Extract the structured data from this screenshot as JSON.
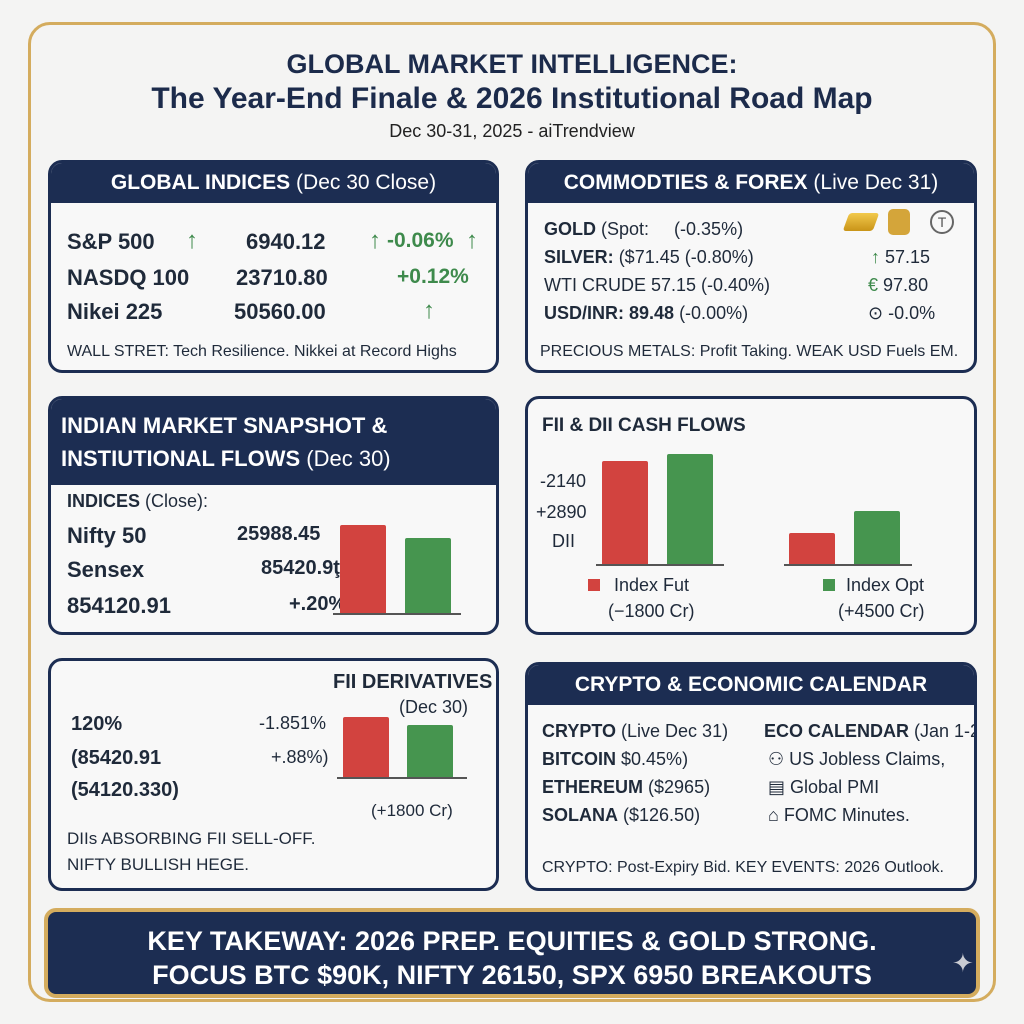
{
  "header": {
    "title_line1": "GLOBAL MARKET INTELLIGENCE:",
    "title_line2": "The Year-End Finale & 2026 Institutional Road Map",
    "subtitle": "Dec 30-31, 2025 - aiTrendview"
  },
  "colors": {
    "navy": "#1c2d52",
    "gold": "#d4ac5e",
    "red": "#d2433f",
    "green": "#46954f"
  },
  "global_indices": {
    "title": "GLOBAL INDICES",
    "title_note": "(Dec 30 Close)",
    "rows": [
      {
        "name": "S&P 500",
        "value": "6940.12",
        "change": "-0.06%"
      },
      {
        "name": "NASDQ 100",
        "value": "23710.80",
        "change": "+0.12%"
      },
      {
        "name": "Nikei 225",
        "value": "50560.00",
        "change": ""
      }
    ],
    "footer": "WALL STRET: Tech Resilience. Nikkei at Record Highs"
  },
  "commodities": {
    "title": "COMMODTIES & FOREX",
    "title_note": "(Live Dec 31)",
    "rows": [
      {
        "label": "GOLD",
        "rest": "(Spot:     (-0.35%)"
      },
      {
        "label": "SILVER:",
        "rest": "($71.45 (-0.80%)"
      },
      {
        "label": "",
        "rest": "WTI CRUDE 57.15 (-0.40%)"
      },
      {
        "label": "USD/INR: 89.48",
        "rest": "(-0.00%)"
      }
    ],
    "side": [
      "57.15",
      "97.80",
      "-0.0%"
    ],
    "side_icons": [
      "up-arrow",
      "euro",
      "gauge"
    ],
    "icons": [
      "gold-bars",
      "oil-barrel",
      "tether-coin"
    ],
    "footer": "PRECIOUS METALS: Profit Taking. WEAK USD Fuels EM."
  },
  "indian": {
    "title_line1": "INDIAN MARKET SNAPSHOT &",
    "title_line2": "INSTIUTIONAL FLOWS",
    "title_note": "(Dec 30)",
    "indices_label": "INDICES",
    "indices_note": "(Close):",
    "rows": [
      {
        "name": "Nifty 50",
        "value": "25988.45"
      },
      {
        "name": "Sensex",
        "value": "85420.9ţ"
      },
      {
        "name": "854120.91",
        "value": "+.20%)"
      }
    ],
    "bars": [
      1.0,
      0.85
    ]
  },
  "cash_flows": {
    "title": "FII & DII CASH FLOWS",
    "labels": [
      "-2140",
      "+2890",
      "DII"
    ],
    "legend": [
      {
        "label": "Index Fut",
        "note": "(−1800 Cr)"
      },
      {
        "label": "Index Opt",
        "note": "(+4500 Cr)"
      }
    ],
    "bars": [
      0.94,
      1.0,
      0.28,
      0.48
    ]
  },
  "derivatives": {
    "title": "FII DERIVATIVES",
    "title_note": "(Dec 30)",
    "left": [
      "120%",
      "(85420.91",
      "(54120.330)"
    ],
    "mid": [
      "-1.851%",
      "+.88%)"
    ],
    "chart_note": "(+1800 Cr)",
    "bars": [
      1.0,
      0.87
    ],
    "footer_line1": "DIIs ABSORBING FII SELL-OFF.",
    "footer_line2": "NIFTY BULLISH HEGE."
  },
  "crypto": {
    "title": "CRYPTO & ECONOMIC CALENDAR",
    "crypto_label": "CRYPTO",
    "crypto_note": "(Live Dec 31)",
    "coins": [
      {
        "name": "BITCOIN",
        "value": "$0.45%)"
      },
      {
        "name": "ETHEREUM",
        "value": "($2965)"
      },
      {
        "name": "SOLANA",
        "value": "($126.50)"
      }
    ],
    "eco_label": "ECO CALENDAR",
    "eco_note": "(Jan 1-2)",
    "events": [
      "US Jobless Claims,",
      "Global PMI",
      "FOMC Minutes."
    ],
    "footer": "CRYPTO: Post-Expiry Bid. KEY EVENTS: 2026 Outlook."
  },
  "banner": {
    "line1": "KEY TAKEWAY: 2026 PREP. EQUITIES & GOLD STRONG.",
    "line2": "FOCUS BTC $90K, NIFTY 26150, SPX 6950 BREAKOUTS"
  }
}
